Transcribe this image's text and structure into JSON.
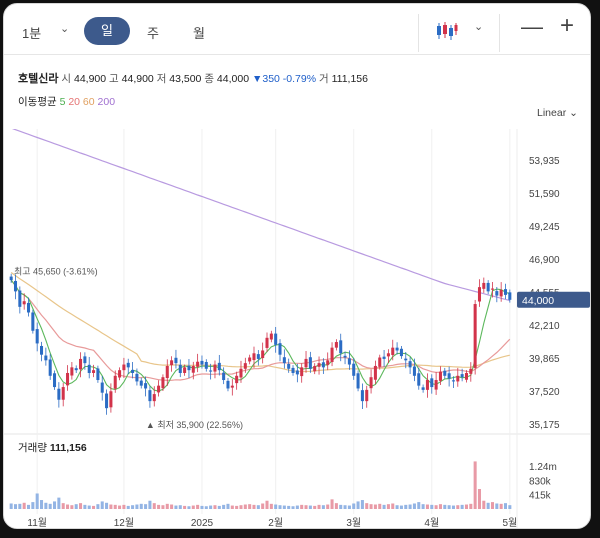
{
  "toolbar": {
    "interval": "1분",
    "tabs": [
      "일",
      "주",
      "월"
    ],
    "active_tab": "일",
    "minimize": "—",
    "maximize": "+"
  },
  "quote": {
    "name": "호텔신라",
    "open_label": "시",
    "open": "44,900",
    "high_label": "고",
    "high": "44,900",
    "low_label": "저",
    "low": "43,500",
    "close_label": "종",
    "close": "44,000",
    "change": "▼350 -0.79%",
    "volume_label": "거",
    "volume": "111,156"
  },
  "ma": {
    "label": "이동평균",
    "periods": [
      {
        "value": "5",
        "color": "#4caf50"
      },
      {
        "value": "20",
        "color": "#e57373"
      },
      {
        "value": "60",
        "color": "#e0a060"
      },
      {
        "value": "200",
        "color": "#a070d0"
      }
    ]
  },
  "scale_mode": "Linear",
  "volume_panel": {
    "label": "거래량",
    "value": "111,156"
  },
  "chart_data": {
    "type": "candlestick",
    "colors": {
      "up": "#d2334a",
      "down": "#2b6cc4",
      "ma5": "#5cb85c",
      "ma20": "#e89a9a",
      "ma60": "#e8c58a",
      "ma200": "#b89ae0"
    },
    "y_ticks": [
      "53,935",
      "51,590",
      "49,245",
      "46,900",
      "44,555",
      "42,210",
      "39,865",
      "37,520",
      "35,175"
    ],
    "ylim": [
      35175,
      56280
    ],
    "current_price": {
      "label": "44,000",
      "value": 44000
    },
    "high_annotation": {
      "label": "최고 45,650 (-3.61%)",
      "value": 45650
    },
    "low_annotation": {
      "label": "▲ 최저 35,900 (22.56%)",
      "value": 35900
    },
    "x_ticks": [
      "11월",
      "12월",
      "2025",
      "2월",
      "3월",
      "4월",
      "5월"
    ],
    "x_tick_index": [
      6,
      26,
      44,
      61,
      79,
      97,
      115
    ],
    "volume_ticks": [
      "1.24m",
      "830k",
      "415k"
    ],
    "volume_max": 1450000,
    "closes": [
      45400,
      44600,
      43500,
      43900,
      43100,
      41800,
      40900,
      40100,
      39700,
      38600,
      37800,
      36900,
      37800,
      38800,
      39200,
      39000,
      39800,
      39500,
      38800,
      39000,
      38300,
      37400,
      36300,
      37500,
      38600,
      39000,
      39400,
      39200,
      38800,
      38200,
      37900,
      37700,
      36800,
      37300,
      37900,
      38500,
      39300,
      39700,
      39500,
      38800,
      39200,
      39000,
      39300,
      39600,
      39400,
      39100,
      38900,
      39400,
      39000,
      38300,
      37700,
      37900,
      38600,
      39100,
      39500,
      39900,
      40200,
      39800,
      40400,
      41300,
      41600,
      40800,
      40100,
      39500,
      39100,
      38800,
      38700,
      39200,
      39800,
      39100,
      39300,
      39500,
      39200,
      39700,
      40600,
      41000,
      40200,
      39900,
      39400,
      38600,
      37700,
      36800,
      37600,
      38500,
      39300,
      39900,
      39800,
      40200,
      40600,
      40400,
      40000,
      39700,
      39200,
      38600,
      37900,
      37600,
      38300,
      37800,
      38300,
      38900,
      38600,
      38400,
      38200,
      38600,
      38500,
      38800,
      39100,
      43700,
      44900,
      45200,
      44600,
      44800,
      44300,
      44700,
      44350,
      44000
    ],
    "volumes": [
      160000,
      140000,
      150000,
      180000,
      120000,
      200000,
      450000,
      260000,
      180000,
      150000,
      220000,
      330000,
      170000,
      130000,
      110000,
      140000,
      170000,
      120000,
      100000,
      90000,
      140000,
      220000,
      180000,
      130000,
      120000,
      100000,
      120000,
      90000,
      110000,
      130000,
      150000,
      140000,
      240000,
      170000,
      120000,
      110000,
      150000,
      130000,
      100000,
      110000,
      90000,
      80000,
      100000,
      120000,
      90000,
      80000,
      100000,
      110000,
      90000,
      120000,
      150000,
      100000,
      90000,
      110000,
      130000,
      140000,
      120000,
      110000,
      160000,
      240000,
      150000,
      130000,
      110000,
      100000,
      90000,
      80000,
      100000,
      120000,
      110000,
      100000,
      90000,
      120000,
      110000,
      130000,
      280000,
      170000,
      120000,
      110000,
      100000,
      160000,
      220000,
      260000,
      170000,
      140000,
      130000,
      150000,
      120000,
      140000,
      160000,
      110000,
      100000,
      120000,
      130000,
      160000,
      200000,
      140000,
      130000,
      120000,
      110000,
      140000,
      120000,
      110000,
      100000,
      110000,
      120000,
      130000,
      150000,
      1380000,
      580000,
      240000,
      180000,
      200000,
      160000,
      150000,
      170000,
      111156
    ]
  }
}
